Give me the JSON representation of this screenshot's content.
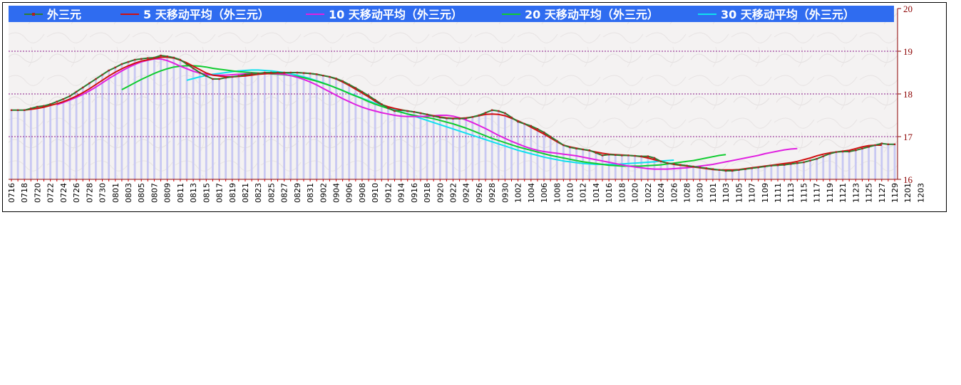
{
  "colors": {
    "legend_bg": "#2f6cf0",
    "price": "#2f7d32",
    "price_marker": "#b02020",
    "ma5": "#d01010",
    "ma10": "#e020e0",
    "ma20": "#10cc30",
    "ma30": "#10e0ee",
    "bars": "#c8c8f2",
    "grid": "#8a1a8a",
    "axis_text": "#8b0000"
  },
  "chart_data": {
    "type": "line",
    "legend_placement": "top",
    "grid": true,
    "ylim": [
      16,
      20
    ],
    "y_ticks": [
      "16",
      "17",
      "18",
      "19",
      "20"
    ],
    "x_tick_labels": [
      "0716",
      "0718",
      "0720",
      "0722",
      "0724",
      "0726",
      "0728",
      "0730",
      "0801",
      "0803",
      "0805",
      "0807",
      "0809",
      "0811",
      "0813",
      "0815",
      "0817",
      "0819",
      "0821",
      "0823",
      "0825",
      "0827",
      "0829",
      "0831",
      "0902",
      "0904",
      "0906",
      "0908",
      "0910",
      "0912",
      "0914",
      "0916",
      "0918",
      "0920",
      "0922",
      "0924",
      "0926",
      "0928",
      "0930",
      "1002",
      "1004",
      "1006",
      "1008",
      "1010",
      "1012",
      "1014",
      "1016",
      "1018",
      "1020",
      "1022",
      "1024",
      "1026",
      "1028",
      "1030",
      "1101",
      "1103",
      "1105",
      "1107",
      "1109",
      "1111",
      "1113",
      "1115",
      "1117",
      "1119",
      "1121",
      "1123",
      "1125",
      "1127",
      "1129",
      "1201",
      "1203"
    ],
    "series": [
      {
        "name": "外三元",
        "key": "price",
        "values": [
          17.62,
          17.62,
          17.62,
          17.66,
          17.7,
          17.72,
          17.76,
          17.82,
          17.88,
          17.95,
          18.05,
          18.15,
          18.25,
          18.35,
          18.45,
          18.55,
          18.62,
          18.7,
          18.75,
          18.8,
          18.82,
          18.84,
          18.85,
          18.9,
          18.88,
          18.85,
          18.8,
          18.7,
          18.6,
          18.5,
          18.42,
          18.35,
          18.35,
          18.38,
          18.4,
          18.42,
          18.45,
          18.47,
          18.48,
          18.5,
          18.5,
          18.5,
          18.5,
          18.5,
          18.5,
          18.49,
          18.48,
          18.46,
          18.43,
          18.4,
          18.36,
          18.3,
          18.22,
          18.14,
          18.05,
          17.96,
          17.86,
          17.76,
          17.67,
          17.6,
          17.62,
          17.6,
          17.58,
          17.55,
          17.52,
          17.48,
          17.45,
          17.43,
          17.42,
          17.42,
          17.43,
          17.46,
          17.5,
          17.56,
          17.62,
          17.6,
          17.55,
          17.45,
          17.35,
          17.3,
          17.25,
          17.18,
          17.1,
          17.0,
          16.9,
          16.8,
          16.75,
          16.72,
          16.7,
          16.68,
          16.62,
          16.56,
          16.58,
          16.57,
          16.56,
          16.56,
          16.55,
          16.54,
          16.54,
          16.5,
          16.42,
          16.38,
          16.36,
          16.34,
          16.32,
          16.3,
          16.28,
          16.26,
          16.24,
          16.22,
          16.2,
          16.2,
          16.22,
          16.24,
          16.26,
          16.28,
          16.3,
          16.32,
          16.33,
          16.34,
          16.36,
          16.38,
          16.4,
          16.44,
          16.48,
          16.54,
          16.6,
          16.64,
          16.65,
          16.65,
          16.68,
          16.72,
          16.76,
          16.8,
          16.84,
          16.82,
          16.82
        ]
      },
      {
        "name": "5 天移动平均（外三元）",
        "key": "ma5",
        "start_index": 2,
        "values": [
          17.62,
          17.64,
          17.66,
          17.69,
          17.73,
          17.77,
          17.82,
          17.88,
          17.95,
          18.03,
          18.12,
          18.22,
          18.32,
          18.42,
          18.51,
          18.59,
          18.66,
          18.72,
          18.77,
          18.8,
          18.83,
          18.86,
          18.86,
          18.84,
          18.79,
          18.73,
          18.65,
          18.57,
          18.49,
          18.44,
          18.42,
          18.4,
          18.4,
          18.41,
          18.42,
          18.44,
          18.46,
          18.47,
          18.48,
          18.49,
          18.49,
          18.5,
          18.5,
          18.49,
          18.48,
          18.46,
          18.43,
          18.4,
          18.35,
          18.28,
          18.2,
          18.11,
          18.02,
          17.93,
          17.83,
          17.75,
          17.7,
          17.66,
          17.63,
          17.6,
          17.58,
          17.55,
          17.52,
          17.49,
          17.46,
          17.44,
          17.43,
          17.43,
          17.44,
          17.46,
          17.49,
          17.52,
          17.53,
          17.52,
          17.49,
          17.43,
          17.37,
          17.3,
          17.22,
          17.14,
          17.06,
          16.97,
          16.88,
          16.8,
          16.76,
          16.73,
          16.7,
          16.67,
          16.64,
          16.61,
          16.59,
          16.58,
          16.57,
          16.56,
          16.55,
          16.53,
          16.5,
          16.46,
          16.42,
          16.38,
          16.35,
          16.33,
          16.31,
          16.29,
          16.27,
          16.25,
          16.23,
          16.22,
          16.22,
          16.22,
          16.23,
          16.25,
          16.27,
          16.29,
          16.31,
          16.33,
          16.35,
          16.37,
          16.39,
          16.42,
          16.46,
          16.5,
          16.55,
          16.59,
          16.62,
          16.64,
          16.66,
          16.68,
          16.72,
          16.76,
          16.79,
          16.8,
          16.8
        ]
      },
      {
        "name": "10 天移动平均（外三元）",
        "key": "ma10",
        "start_index": 7,
        "values": [
          17.75,
          17.8,
          17.86,
          17.92,
          17.99,
          18.07,
          18.16,
          18.26,
          18.36,
          18.45,
          18.54,
          18.62,
          18.69,
          18.75,
          18.79,
          18.82,
          18.82,
          18.78,
          18.72,
          18.65,
          18.59,
          18.53,
          18.49,
          18.46,
          18.44,
          18.44,
          18.44,
          18.45,
          18.46,
          18.47,
          18.48,
          18.48,
          18.48,
          18.48,
          18.47,
          18.46,
          18.43,
          18.39,
          18.34,
          18.28,
          18.21,
          18.13,
          18.05,
          17.97,
          17.89,
          17.82,
          17.75,
          17.69,
          17.64,
          17.6,
          17.56,
          17.53,
          17.5,
          17.48,
          17.47,
          17.47,
          17.47,
          17.48,
          17.49,
          17.5,
          17.5,
          17.48,
          17.44,
          17.39,
          17.33,
          17.26,
          17.19,
          17.11,
          17.03,
          16.96,
          16.89,
          16.83,
          16.77,
          16.72,
          16.68,
          16.65,
          16.63,
          16.61,
          16.59,
          16.57,
          16.55,
          16.52,
          16.49,
          16.46,
          16.43,
          16.4,
          16.37,
          16.34,
          16.31,
          16.29,
          16.27,
          16.25,
          16.24,
          16.24,
          16.24,
          16.25,
          16.26,
          16.27,
          16.29,
          16.31,
          16.33,
          16.35,
          16.38,
          16.41,
          16.44,
          16.47,
          16.5,
          16.53,
          16.56,
          16.6,
          16.63,
          16.66,
          16.69,
          16.71,
          16.72
        ]
      },
      {
        "name": "20 天移动平均（外三元）",
        "key": "ma20",
        "start_index": 17,
        "values": [
          18.1,
          18.18,
          18.26,
          18.34,
          18.41,
          18.48,
          18.54,
          18.59,
          18.63,
          18.65,
          18.66,
          18.66,
          18.65,
          18.63,
          18.6,
          18.58,
          18.56,
          18.54,
          18.52,
          18.51,
          18.5,
          18.49,
          18.48,
          18.47,
          18.46,
          18.45,
          18.43,
          18.41,
          18.38,
          18.34,
          18.3,
          18.25,
          18.2,
          18.14,
          18.08,
          18.01,
          17.95,
          17.89,
          17.82,
          17.76,
          17.71,
          17.66,
          17.61,
          17.57,
          17.53,
          17.5,
          17.47,
          17.45,
          17.42,
          17.38,
          17.34,
          17.3,
          17.25,
          17.2,
          17.14,
          17.08,
          17.02,
          16.96,
          16.91,
          16.86,
          16.81,
          16.76,
          16.72,
          16.68,
          16.64,
          16.6,
          16.56,
          16.53,
          16.5,
          16.47,
          16.44,
          16.41,
          16.39,
          16.37,
          16.35,
          16.33,
          16.32,
          16.31,
          16.31,
          16.31,
          16.31,
          16.32,
          16.33,
          16.34,
          16.36,
          16.38,
          16.4,
          16.42,
          16.44,
          16.47,
          16.5,
          16.53,
          16.56,
          16.58
        ]
      },
      {
        "name": "30 天移动平均（外三元）",
        "key": "ma30",
        "start_index": 27,
        "values": [
          18.32,
          18.36,
          18.4,
          18.43,
          18.46,
          18.48,
          18.5,
          18.52,
          18.54,
          18.55,
          18.56,
          18.56,
          18.55,
          18.54,
          18.52,
          18.5,
          18.47,
          18.44,
          18.4,
          18.36,
          18.31,
          18.26,
          18.2,
          18.14,
          18.08,
          18.02,
          17.96,
          17.9,
          17.84,
          17.78,
          17.73,
          17.68,
          17.63,
          17.58,
          17.53,
          17.48,
          17.43,
          17.38,
          17.33,
          17.28,
          17.23,
          17.18,
          17.13,
          17.08,
          17.03,
          16.98,
          16.93,
          16.88,
          16.83,
          16.78,
          16.73,
          16.68,
          16.64,
          16.6,
          16.56,
          16.52,
          16.49,
          16.46,
          16.43,
          16.41,
          16.39,
          16.37,
          16.36,
          16.35,
          16.35,
          16.35,
          16.35,
          16.36,
          16.37,
          16.38,
          16.39,
          16.4,
          16.41,
          16.43,
          16.44,
          16.45
        ]
      }
    ]
  }
}
